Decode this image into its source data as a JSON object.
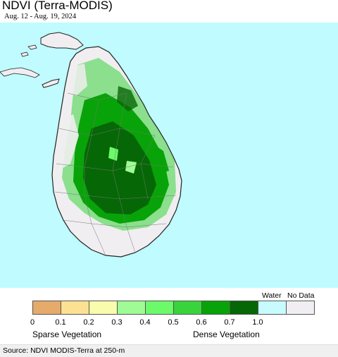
{
  "header": {
    "title": "NDVI (Terra-MODIS)",
    "date_range": "Aug. 12 - Aug. 19, 2024"
  },
  "colors": {
    "ocean": "#bffbff",
    "land_sparse": "#f0eef0",
    "land_outline": "#222222"
  },
  "legend": {
    "bins": [
      {
        "color": "#e6ab6a"
      },
      {
        "color": "#fde192"
      },
      {
        "color": "#f9fbad"
      },
      {
        "color": "#9ffb95"
      },
      {
        "color": "#6cf96a"
      },
      {
        "color": "#39d33c"
      },
      {
        "color": "#08a308"
      },
      {
        "color": "#066706"
      },
      {
        "color": "#c8fbfe"
      },
      {
        "color": "#f0eef2"
      }
    ],
    "ticks": [
      "0",
      "0.1",
      "0.2",
      "0.3",
      "0.4",
      "0.5",
      "0.6",
      "0.7",
      "1.0"
    ],
    "water_label": "Water",
    "nodata_label": "No Data",
    "sparse_label": "Sparse Vegetation",
    "dense_label": "Dense Vegetation"
  },
  "footer": {
    "source": "Source: NDVI MODIS-Terra at 250-m"
  }
}
